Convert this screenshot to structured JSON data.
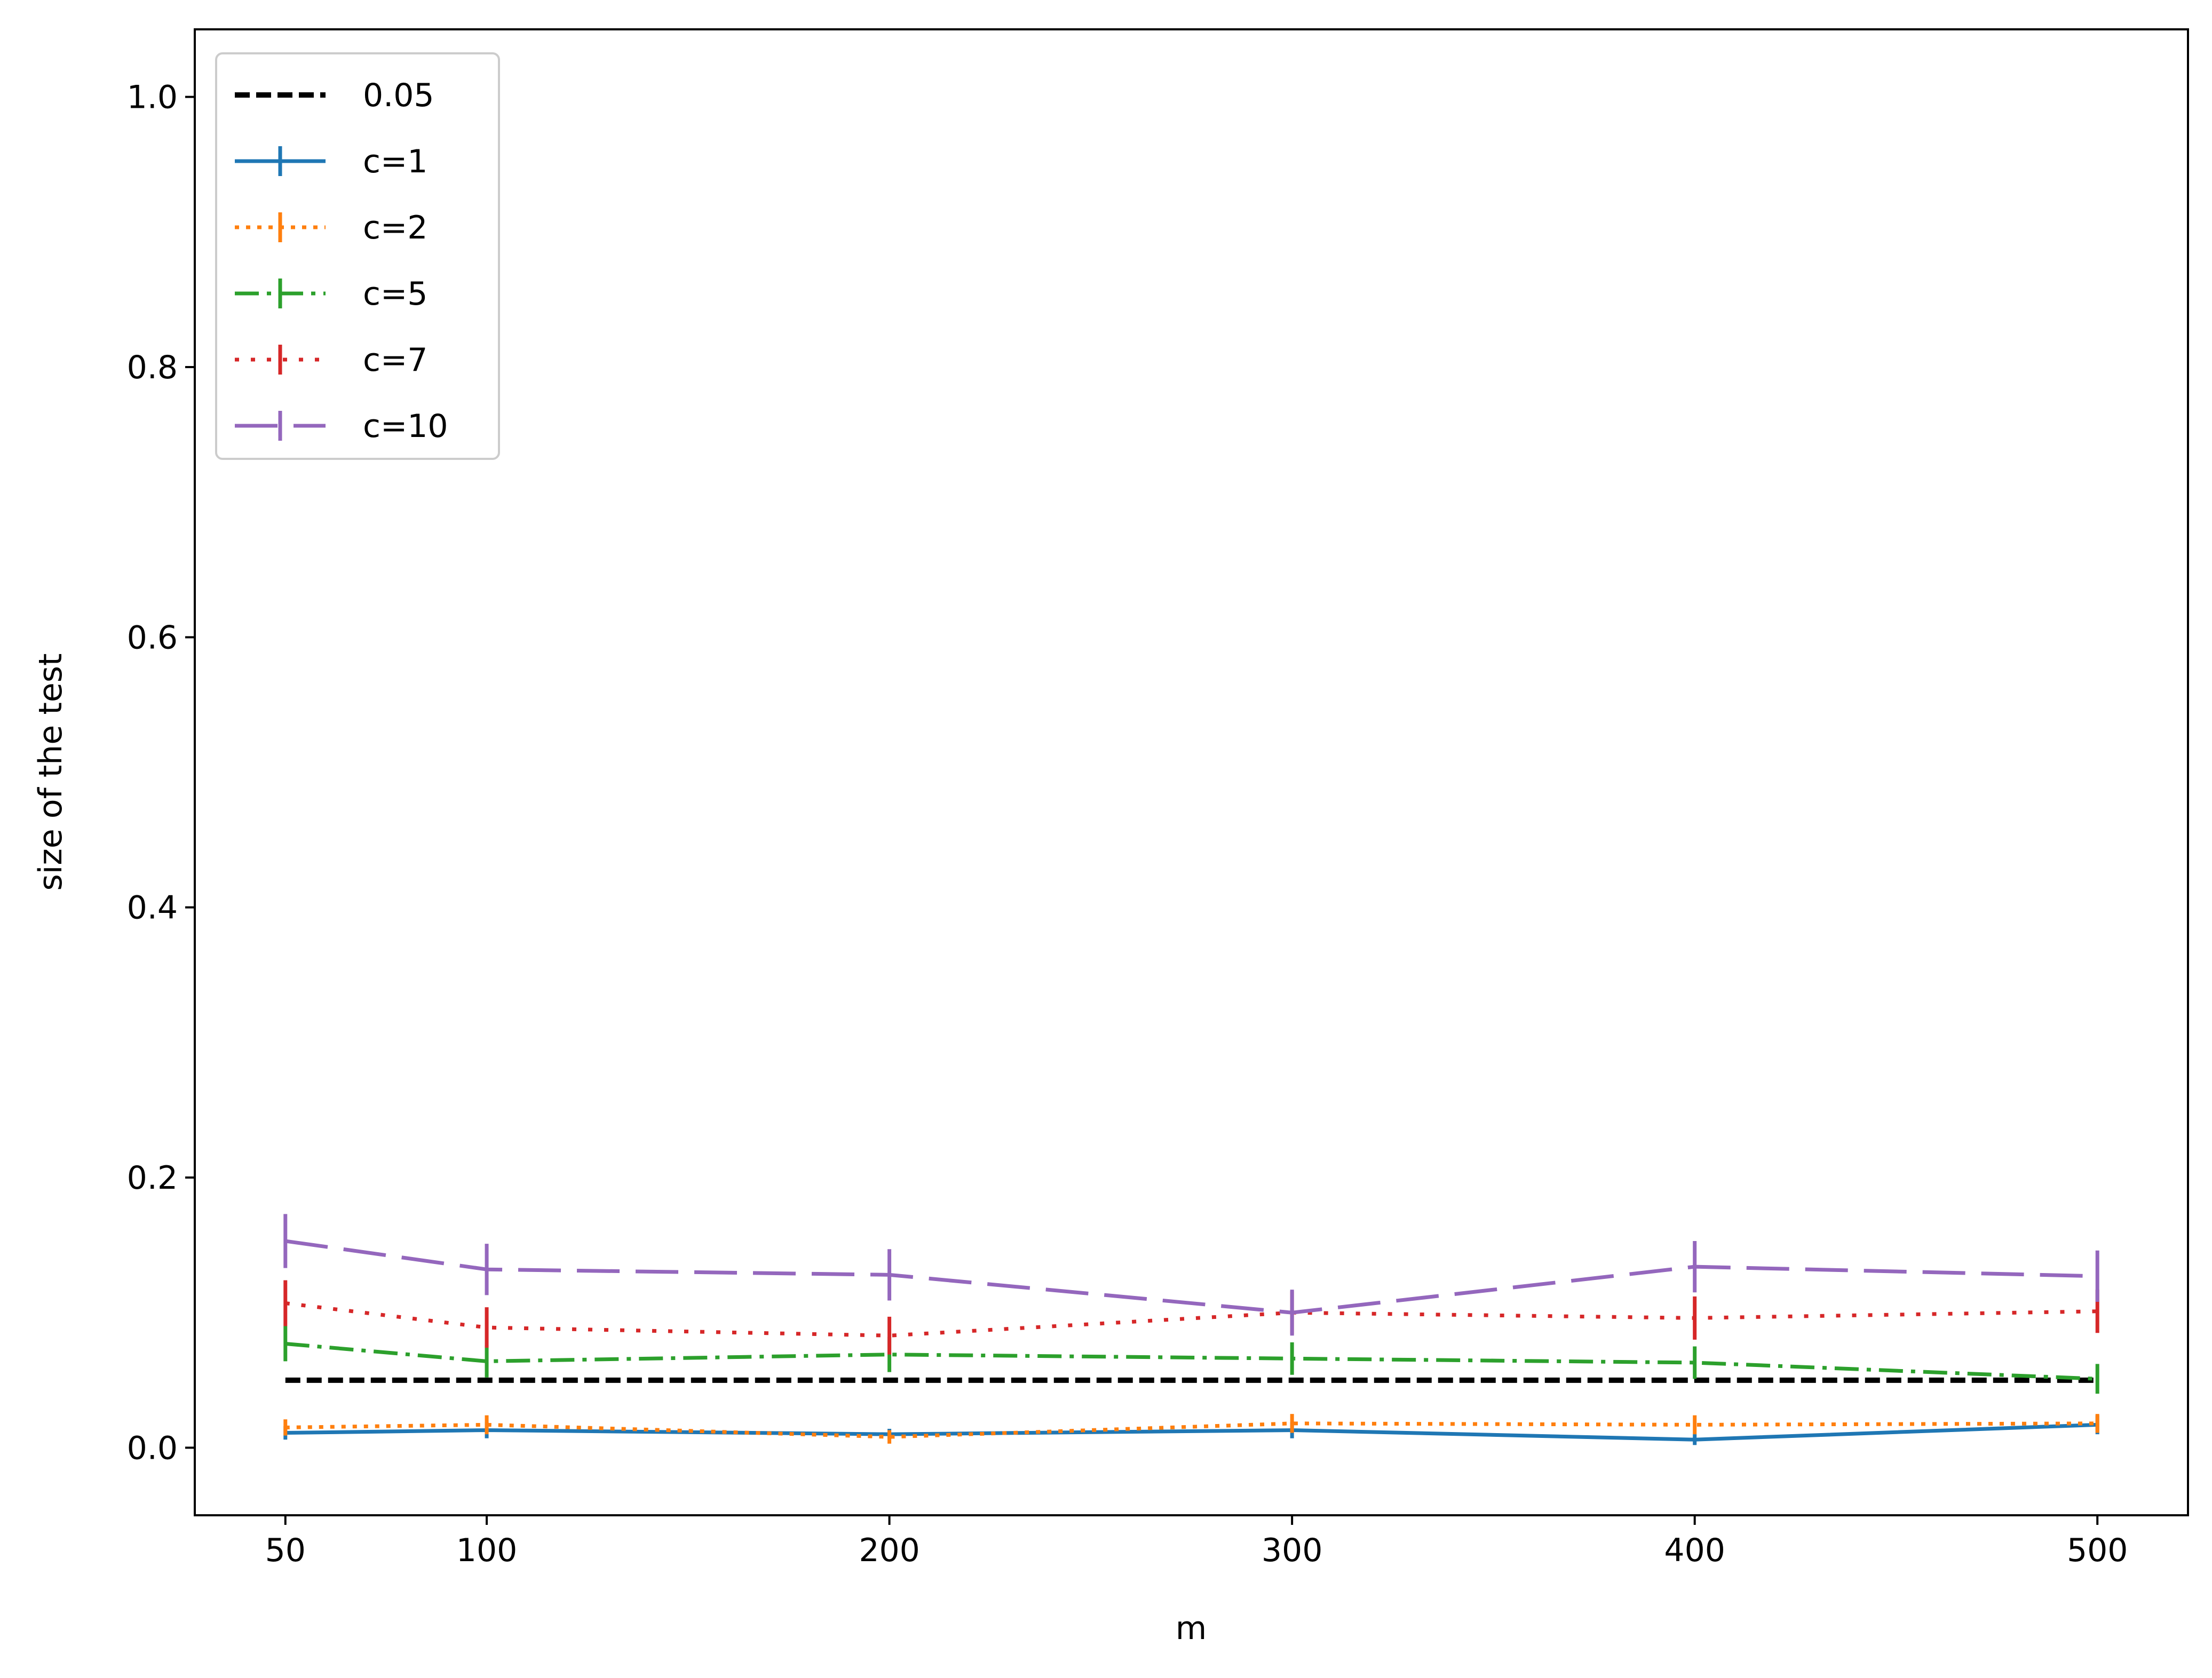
{
  "chart_data": {
    "type": "line",
    "title": "",
    "xlabel": "m",
    "ylabel": "size of the test",
    "x": [
      50,
      100,
      200,
      300,
      400,
      500
    ],
    "xticks": [
      50,
      100,
      200,
      300,
      400,
      500
    ],
    "yticks": [
      0.0,
      0.2,
      0.4,
      0.6,
      0.8,
      1.0
    ],
    "ytick_labels": [
      "0.0",
      "0.2",
      "0.4",
      "0.6",
      "0.8",
      "1.0"
    ],
    "xlim": [
      27.5,
      522.5
    ],
    "ylim": [
      -0.05,
      1.05
    ],
    "grid": false,
    "legend_position": "upper-left",
    "reference_line": {
      "name": "0.05",
      "value": 0.05,
      "color": "#000000",
      "style": "dashed"
    },
    "series": [
      {
        "name": "c=1",
        "color": "#1f77b4",
        "style": "solid",
        "values": [
          0.011,
          0.013,
          0.01,
          0.013,
          0.006,
          0.017
        ],
        "errors": [
          0.005,
          0.006,
          0.004,
          0.006,
          0.004,
          0.007
        ]
      },
      {
        "name": "c=2",
        "color": "#ff7f0e",
        "style": "dotted",
        "values": [
          0.015,
          0.017,
          0.008,
          0.018,
          0.017,
          0.018
        ],
        "errors": [
          0.006,
          0.007,
          0.005,
          0.007,
          0.007,
          0.007
        ]
      },
      {
        "name": "c=5",
        "color": "#2ca02c",
        "style": "dashdot",
        "values": [
          0.077,
          0.064,
          0.069,
          0.066,
          0.063,
          0.051
        ],
        "errors": [
          0.013,
          0.012,
          0.013,
          0.012,
          0.012,
          0.011
        ]
      },
      {
        "name": "c=7",
        "color": "#d62728",
        "style": "dotted-sparse",
        "values": [
          0.107,
          0.089,
          0.083,
          0.1,
          0.096,
          0.101
        ],
        "errors": [
          0.017,
          0.015,
          0.014,
          0.016,
          0.016,
          0.016
        ]
      },
      {
        "name": "c=10",
        "color": "#9467bd",
        "style": "long-dash",
        "values": [
          0.153,
          0.132,
          0.128,
          0.1,
          0.134,
          0.127
        ],
        "errors": [
          0.02,
          0.019,
          0.019,
          0.017,
          0.019,
          0.019
        ]
      }
    ]
  }
}
